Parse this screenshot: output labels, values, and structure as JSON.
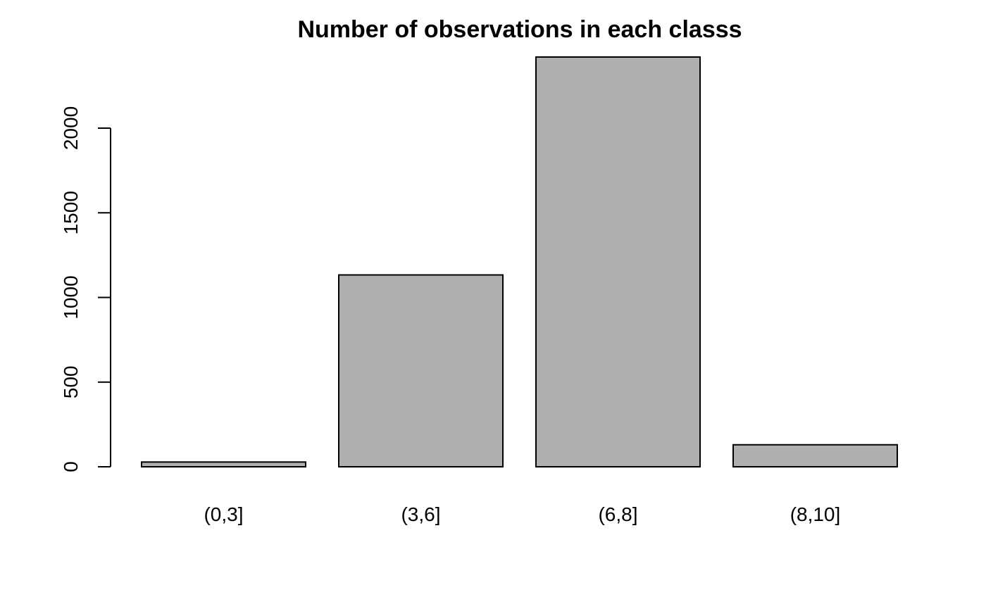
{
  "chart_data": {
    "type": "bar",
    "title": "Number of observations in each classs",
    "xlabel": "",
    "ylabel": "",
    "categories": [
      "(0,3]",
      "(3,6]",
      "(6,8]",
      "(8,10]"
    ],
    "values": [
      28,
      1133,
      2420,
      130
    ],
    "yticks": [
      0,
      500,
      1000,
      1500,
      2000
    ],
    "ytick_labels": [
      "0",
      "500",
      "1000",
      "1500",
      "2000"
    ],
    "ylim": [
      0,
      2420
    ],
    "grid": false,
    "legend": "none",
    "colors": {
      "bar_fill": "#b0b0b0",
      "bar_stroke": "#000000",
      "background": "#ffffff"
    }
  }
}
